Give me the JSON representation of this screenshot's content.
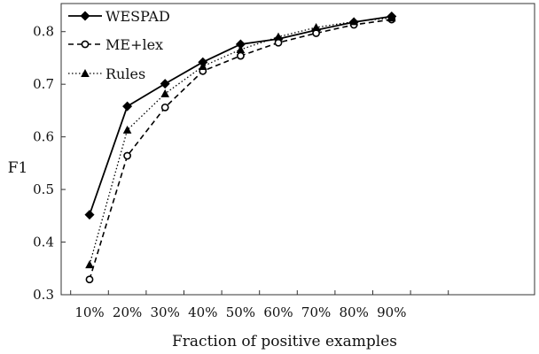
{
  "chart_data": {
    "type": "line",
    "xlabel": "Fraction of positive examples",
    "ylabel": "F1",
    "categories": [
      "10%",
      "20%",
      "30%",
      "40%",
      "50%",
      "60%",
      "70%",
      "80%",
      "90%"
    ],
    "ylim": [
      0.3,
      0.85
    ],
    "yticks": [
      0.3,
      0.4,
      0.5,
      0.6,
      0.7,
      0.8
    ],
    "grid": false,
    "legend_position": "top-left",
    "series": [
      {
        "name": "WESPAD",
        "marker": "diamond",
        "line_style": "solid",
        "values": [
          0.452,
          0.658,
          0.701,
          0.742,
          0.776,
          0.786,
          0.803,
          0.818,
          0.829
        ]
      },
      {
        "name": "ME+lex",
        "marker": "open-circle",
        "line_style": "dashed",
        "values": [
          0.329,
          0.564,
          0.656,
          0.725,
          0.754,
          0.779,
          0.797,
          0.813,
          0.823
        ]
      },
      {
        "name": "Rules",
        "marker": "triangle",
        "line_style": "dotted",
        "values": [
          0.357,
          0.613,
          0.682,
          0.734,
          0.766,
          0.79,
          0.808,
          0.819,
          0.826
        ]
      }
    ]
  }
}
